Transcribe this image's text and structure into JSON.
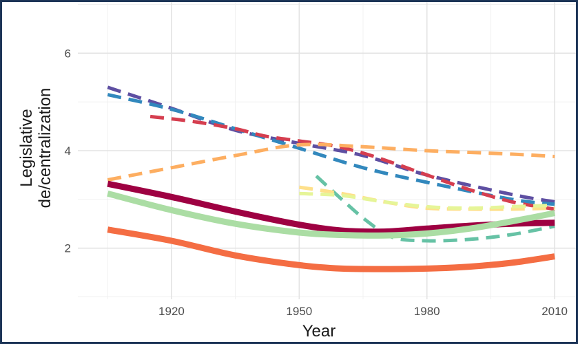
{
  "chart_data": {
    "type": "line",
    "xlabel": "Year",
    "ylabel_lines": [
      "Legislative",
      "de/centralization"
    ],
    "xlim": [
      1898,
      2015
    ],
    "ylim": [
      0.95,
      7.05
    ],
    "x_ticks": [
      1920,
      1950,
      1980,
      2010
    ],
    "x_tick_labels": [
      "1920",
      "1950",
      "1980",
      "2010"
    ],
    "x_minor_ticks": [
      1905,
      1935,
      1965,
      1995
    ],
    "y_ticks": [
      2,
      4,
      6
    ],
    "y_tick_labels": [
      "2",
      "4",
      "6"
    ],
    "y_minor_ticks": [
      1,
      3,
      5,
      7
    ],
    "grid": true,
    "legend": "none",
    "series": [
      {
        "color": "#5e4fa2",
        "dash": true,
        "width": 5,
        "x": [
          1905,
          1920,
          1935,
          1950,
          1965,
          1980,
          2000,
          2010
        ],
        "y": [
          5.3,
          4.87,
          4.42,
          4.15,
          3.9,
          3.5,
          3.1,
          2.95
        ]
      },
      {
        "color": "#3288bd",
        "dash": true,
        "width": 5,
        "x": [
          1905,
          1920,
          1935,
          1950,
          1965,
          1980,
          2000,
          2010
        ],
        "y": [
          5.15,
          4.85,
          4.45,
          4.05,
          3.65,
          3.35,
          3.0,
          2.9
        ]
      },
      {
        "color": "#d53e4f",
        "dash": true,
        "width": 5,
        "x": [
          1915,
          1925,
          1935,
          1942,
          1950,
          1958,
          1965,
          1972,
          1980,
          1990,
          2000,
          2010
        ],
        "y": [
          4.7,
          4.6,
          4.45,
          4.3,
          4.2,
          4.1,
          3.95,
          3.75,
          3.5,
          3.2,
          2.95,
          2.8
        ]
      },
      {
        "color": "#fdae61",
        "dash": true,
        "width": 5,
        "x": [
          1905,
          1920,
          1935,
          1950,
          1965,
          1980,
          2000,
          2010
        ],
        "y": [
          3.4,
          3.65,
          3.9,
          4.12,
          4.08,
          4.0,
          3.93,
          3.88
        ]
      },
      {
        "color": "#66c2a5",
        "dash": true,
        "width": 5,
        "x": [
          1954,
          1960,
          1966,
          1972,
          1980,
          1990,
          2000,
          2010
        ],
        "y": [
          3.48,
          3.0,
          2.55,
          2.22,
          2.15,
          2.18,
          2.28,
          2.45
        ]
      },
      {
        "color": "#fee08b",
        "dash": true,
        "width": 5,
        "x": [
          1950,
          1960,
          1970,
          1980,
          1990,
          2000,
          2010
        ],
        "y": [
          3.25,
          3.12,
          2.95,
          2.82,
          2.8,
          2.8,
          2.82
        ]
      },
      {
        "color": "#e6f598",
        "dash": true,
        "width": 5,
        "x": [
          1950,
          1960,
          1970,
          1980,
          1990,
          2000,
          2010
        ],
        "y": [
          3.12,
          3.08,
          2.95,
          2.85,
          2.82,
          2.85,
          2.88
        ]
      },
      {
        "color": "#9e0142",
        "dash": false,
        "width": 9,
        "x": [
          1905,
          1920,
          1935,
          1950,
          1960,
          1970,
          1980,
          1990,
          2000,
          2010
        ],
        "y": [
          3.32,
          3.05,
          2.75,
          2.48,
          2.36,
          2.34,
          2.4,
          2.46,
          2.5,
          2.52
        ]
      },
      {
        "color": "#abdda4",
        "dash": false,
        "width": 9,
        "x": [
          1905,
          1920,
          1935,
          1950,
          1960,
          1970,
          1980,
          1990,
          2000,
          2010
        ],
        "y": [
          3.12,
          2.78,
          2.5,
          2.32,
          2.27,
          2.26,
          2.3,
          2.4,
          2.55,
          2.72
        ]
      },
      {
        "color": "#f46d43",
        "dash": false,
        "width": 9,
        "x": [
          1905,
          1920,
          1935,
          1950,
          1960,
          1970,
          1980,
          1990,
          2000,
          2010
        ],
        "y": [
          2.38,
          2.15,
          1.85,
          1.65,
          1.58,
          1.57,
          1.58,
          1.62,
          1.7,
          1.83
        ]
      }
    ]
  }
}
